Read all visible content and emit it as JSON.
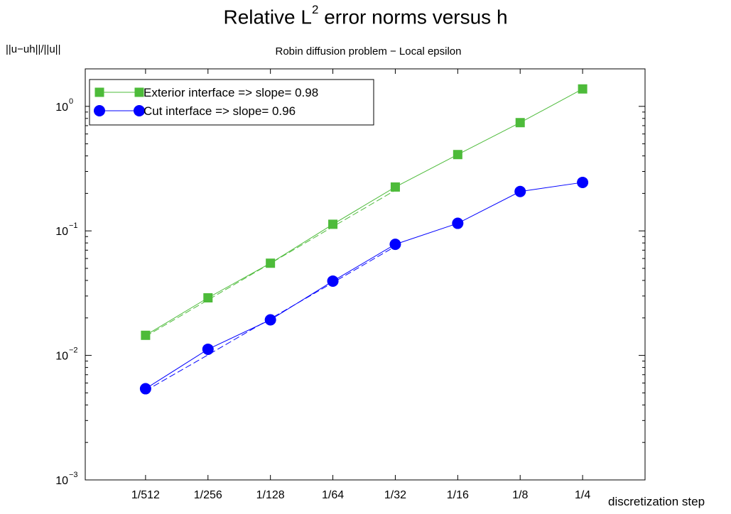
{
  "chart_data": {
    "type": "line",
    "title_main": "Relative L",
    "title_sup": "2",
    "title_rest": " error norms versus h",
    "subtitle": "Robin diffusion problem − Local epsilon",
    "ylabel": "||u−uh||/||u||",
    "xlabel": "discretization step",
    "xscale": "log2",
    "yscale": "log",
    "categories": [
      "1/512",
      "1/256",
      "1/128",
      "1/64",
      "1/32",
      "1/16",
      "1/8",
      "1/4"
    ],
    "x": [
      0.001953125,
      0.00390625,
      0.0078125,
      0.015625,
      0.03125,
      0.0625,
      0.125,
      0.25
    ],
    "xlim": [
      0.001,
      0.5
    ],
    "ylim": [
      0.001,
      2
    ],
    "yticks": [
      {
        "base": "10",
        "exp": "0",
        "value": 1
      },
      {
        "base": "10",
        "exp": "−1",
        "value": 0.1
      },
      {
        "base": "10",
        "exp": "−2",
        "value": 0.01
      },
      {
        "base": "10",
        "exp": "−3",
        "value": 0.001
      }
    ],
    "series": [
      {
        "name": "Exterior interface => slope= 0.98",
        "color": "#4dbb3a",
        "marker": "square",
        "values": [
          0.0145,
          0.029,
          0.055,
          0.113,
          0.225,
          0.41,
          0.74,
          1.38
        ],
        "fit": [
          0.0142,
          0.0279,
          0.0548,
          0.108,
          0.212
        ]
      },
      {
        "name": "Cut interface => slope= 0.96",
        "color": "#0000ff",
        "marker": "circle",
        "values": [
          0.0054,
          0.0112,
          0.0193,
          0.0395,
          0.078,
          0.115,
          0.207,
          0.245
        ],
        "fit": [
          0.0052,
          0.0101,
          0.0197,
          0.0384,
          0.075
        ]
      }
    ],
    "legend_position": "top-left",
    "grid": false
  }
}
